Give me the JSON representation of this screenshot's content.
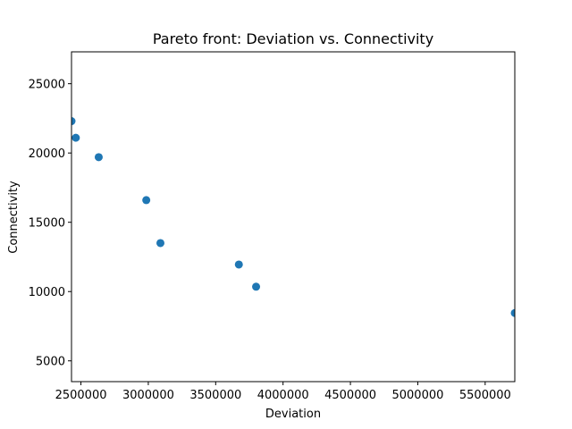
{
  "chart_data": {
    "type": "scatter",
    "title": "Pareto front: Deviation vs. Connectivity",
    "xlabel": "Deviation",
    "ylabel": "Connectivity",
    "xlim": [
      2430000,
      5720000
    ],
    "ylim": [
      3500,
      27300
    ],
    "xticks": [
      2500000,
      3000000,
      3500000,
      4000000,
      4500000,
      5000000,
      5500000
    ],
    "xtick_labels": [
      "2500000",
      "3000000",
      "3500000",
      "4000000",
      "4500000",
      "5000000",
      "5500000"
    ],
    "yticks": [
      5000,
      10000,
      15000,
      20000,
      25000
    ],
    "ytick_labels": [
      "5000",
      "10000",
      "15000",
      "20000",
      "25000"
    ],
    "grid": false,
    "marker_color": "#1f77b4",
    "points": [
      {
        "x": 2430000,
        "y": 22300
      },
      {
        "x": 2462000,
        "y": 21100
      },
      {
        "x": 2632000,
        "y": 19700
      },
      {
        "x": 2985000,
        "y": 16600
      },
      {
        "x": 3090000,
        "y": 13500
      },
      {
        "x": 3672000,
        "y": 11950
      },
      {
        "x": 3800000,
        "y": 10350
      },
      {
        "x": 5720000,
        "y": 8450
      }
    ]
  }
}
